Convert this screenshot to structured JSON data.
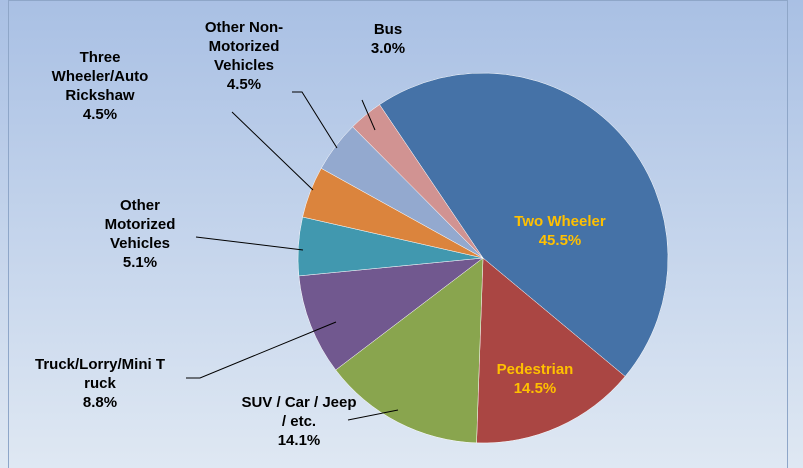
{
  "chart_data": {
    "type": "pie",
    "categories": [
      "Two Wheeler",
      "Pedestrian",
      "SUV / Car / Jeep / etc.",
      "Truck/Lorry/Mini Truck",
      "Other Motorized Vehicles",
      "Three Wheeler/Auto Rickshaw",
      "Other Non-Motorized Vehicles",
      "Bus"
    ],
    "values": [
      45.5,
      14.5,
      14.1,
      8.8,
      5.1,
      4.5,
      4.5,
      3.0
    ],
    "value_labels": [
      "45.5%",
      "14.5%",
      "14.1%",
      "8.8%",
      "5.1%",
      "4.5%",
      "4.5%",
      "3.0%"
    ],
    "colors": [
      "#4572a7",
      "#aa4643",
      "#89a54e",
      "#71588f",
      "#4198af",
      "#db843d",
      "#93a9cf",
      "#d19392"
    ]
  }
}
